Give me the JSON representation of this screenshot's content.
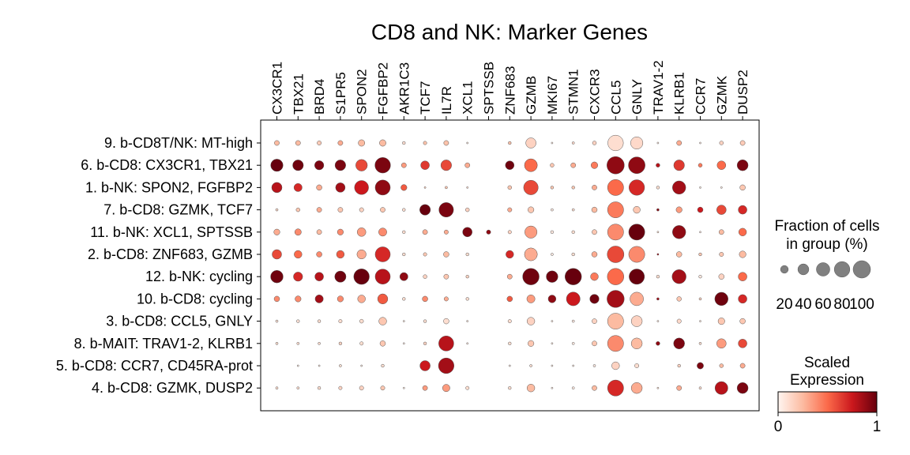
{
  "chart_data": {
    "type": "dotplot",
    "title": "CD8 and NK: Marker Genes",
    "genes": [
      "CX3CR1",
      "TBX21",
      "BRD4",
      "S1PR5",
      "SPON2",
      "FGFBP2",
      "AKR1C3",
      "TCF7",
      "IL7R",
      "XCL1",
      "SPTSSB",
      "ZNF683",
      "GZMB",
      "MKI67",
      "STMN1",
      "CXCR3",
      "CCL5",
      "GNLY",
      "TRAV1-2",
      "KLRB1",
      "CCR7",
      "GZMK",
      "DUSP2"
    ],
    "groups": [
      "9. b-CD8T/NK: MT-high",
      "6. b-CD8: CX3CR1, TBX21",
      "1. b-NK: SPON2, FGFBP2",
      "7. b-CD8: GZMK, TCF7",
      "11. b-NK: XCL1, SPTSSB",
      "2. b-CD8: ZNF683, GZMB",
      "12. b-NK: cycling",
      "10. b-CD8: cycling",
      "3. b-CD8: CCL5, GNLY",
      "8. b-MAIT: TRAV1-2, KLRB1",
      "5. b-CD8: CCR7, CD45RA-prot",
      "4. b-CD8: GZMK, DUSP2"
    ],
    "fraction_percent": [
      [
        8,
        8,
        6,
        8,
        14,
        14,
        3,
        4,
        8,
        1,
        0,
        3,
        35,
        1,
        2,
        5,
        80,
        50,
        1,
        8,
        1,
        5,
        8
      ],
      [
        50,
        38,
        28,
        38,
        45,
        80,
        8,
        25,
        38,
        8,
        0,
        25,
        55,
        5,
        8,
        15,
        100,
        92,
        5,
        38,
        5,
        25,
        40
      ],
      [
        35,
        22,
        10,
        30,
        65,
        75,
        12,
        1,
        2,
        1,
        0,
        5,
        70,
        3,
        3,
        8,
        85,
        80,
        3,
        58,
        1,
        1,
        10
      ],
      [
        2,
        5,
        8,
        8,
        6,
        8,
        3,
        38,
        70,
        5,
        0,
        6,
        12,
        2,
        2,
        10,
        85,
        16,
        2,
        12,
        10,
        30,
        25
      ],
      [
        12,
        14,
        8,
        12,
        25,
        22,
        3,
        8,
        6,
        30,
        6,
        4,
        50,
        3,
        3,
        8,
        85,
        85,
        1,
        58,
        1,
        8,
        20
      ],
      [
        30,
        20,
        10,
        20,
        28,
        75,
        3,
        4,
        10,
        3,
        0,
        20,
        55,
        2,
        3,
        10,
        92,
        85,
        1,
        10,
        3,
        6,
        15
      ],
      [
        52,
        28,
        25,
        42,
        80,
        75,
        22,
        5,
        8,
        3,
        0,
        8,
        90,
        45,
        90,
        20,
        90,
        78,
        3,
        65,
        3,
        10,
        25
      ],
      [
        10,
        12,
        22,
        12,
        20,
        34,
        3,
        10,
        6,
        3,
        0,
        10,
        22,
        20,
        62,
        28,
        98,
        60,
        2,
        7,
        2,
        58,
        25
      ],
      [
        2,
        3,
        3,
        4,
        5,
        20,
        1,
        3,
        10,
        1,
        0,
        4,
        20,
        1,
        2,
        8,
        85,
        40,
        1,
        6,
        1,
        15,
        10
      ],
      [
        2,
        2,
        2,
        3,
        4,
        10,
        1,
        3,
        75,
        1,
        0,
        3,
        12,
        1,
        2,
        8,
        85,
        40,
        5,
        40,
        2,
        30,
        25
      ],
      [
        0,
        1,
        1,
        2,
        1,
        3,
        0,
        35,
        80,
        0,
        0,
        1,
        2,
        1,
        1,
        2,
        20,
        6,
        0,
        3,
        14,
        5,
        8
      ],
      [
        2,
        2,
        3,
        4,
        6,
        6,
        1,
        8,
        18,
        4,
        0,
        3,
        20,
        1,
        2,
        8,
        85,
        40,
        1,
        8,
        2,
        55,
        40
      ]
    ],
    "scaled_expression": [
      [
        0.25,
        0.25,
        0.18,
        0.3,
        0.25,
        0.25,
        0.1,
        0.22,
        0.22,
        0.05,
        0.0,
        0.22,
        0.15,
        0.05,
        0.12,
        0.15,
        0.1,
        0.12,
        0.05,
        0.3,
        0.05,
        0.15,
        0.18
      ],
      [
        1.0,
        0.98,
        0.95,
        0.95,
        0.6,
        0.95,
        0.35,
        0.65,
        0.6,
        0.3,
        0.0,
        0.98,
        0.5,
        0.2,
        0.3,
        0.45,
        0.9,
        0.9,
        0.8,
        0.65,
        0.45,
        0.5,
        0.95
      ],
      [
        0.8,
        0.7,
        0.3,
        0.85,
        0.75,
        0.9,
        0.55,
        0.15,
        0.2,
        0.1,
        0.0,
        0.2,
        0.6,
        0.2,
        0.2,
        0.3,
        0.5,
        0.7,
        0.1,
        0.85,
        0.05,
        0.05,
        0.2
      ],
      [
        0.12,
        0.2,
        0.3,
        0.2,
        0.15,
        0.2,
        0.1,
        1.0,
        0.95,
        0.15,
        0.0,
        0.3,
        0.2,
        0.05,
        0.1,
        0.25,
        0.45,
        0.2,
        0.9,
        0.35,
        0.75,
        0.6,
        0.7
      ],
      [
        0.3,
        0.4,
        0.25,
        0.4,
        0.35,
        0.4,
        0.1,
        0.3,
        0.3,
        0.95,
        0.9,
        0.15,
        0.35,
        0.05,
        0.1,
        0.2,
        0.4,
        1.0,
        0.1,
        0.9,
        0.05,
        0.25,
        0.5
      ],
      [
        0.6,
        0.5,
        0.4,
        0.55,
        0.3,
        0.7,
        0.1,
        0.2,
        0.25,
        0.1,
        0.0,
        0.7,
        0.3,
        0.05,
        0.1,
        0.3,
        0.6,
        0.4,
        0.85,
        0.25,
        0.2,
        0.2,
        0.25
      ],
      [
        0.98,
        0.7,
        0.8,
        0.98,
        1.0,
        0.8,
        0.9,
        0.15,
        0.2,
        0.15,
        0.0,
        0.3,
        0.98,
        0.98,
        1.0,
        0.45,
        0.5,
        1.0,
        0.1,
        0.85,
        0.05,
        0.15,
        0.5
      ],
      [
        0.4,
        0.4,
        0.85,
        0.4,
        0.3,
        0.55,
        0.1,
        0.4,
        0.3,
        0.1,
        0.0,
        0.55,
        0.35,
        0.9,
        0.75,
        0.98,
        0.85,
        0.3,
        0.85,
        0.2,
        0.15,
        0.98,
        0.7
      ],
      [
        0.08,
        0.08,
        0.1,
        0.1,
        0.1,
        0.2,
        0.05,
        0.1,
        0.1,
        0.05,
        0.0,
        0.1,
        0.15,
        0.05,
        0.05,
        0.15,
        0.25,
        0.15,
        0.05,
        0.12,
        0.05,
        0.2,
        0.2
      ],
      [
        0.1,
        0.1,
        0.1,
        0.15,
        0.1,
        0.2,
        0.05,
        0.15,
        0.8,
        0.05,
        0.0,
        0.1,
        0.2,
        0.05,
        0.05,
        0.2,
        0.4,
        0.25,
        0.9,
        0.95,
        0.1,
        0.35,
        0.6
      ],
      [
        0.05,
        0.05,
        0.05,
        0.1,
        0.05,
        0.1,
        0.0,
        0.75,
        0.85,
        0.0,
        0.0,
        0.05,
        0.1,
        0.05,
        0.05,
        0.05,
        0.15,
        0.1,
        0.05,
        0.15,
        0.95,
        0.25,
        0.3
      ],
      [
        0.1,
        0.1,
        0.1,
        0.15,
        0.15,
        0.2,
        0.05,
        0.35,
        0.35,
        0.1,
        0.0,
        0.1,
        0.25,
        0.05,
        0.05,
        0.25,
        0.7,
        0.3,
        0.1,
        0.3,
        0.1,
        0.8,
        0.95
      ]
    ],
    "size_legend": {
      "title_line1": "Fraction of cells",
      "title_line2": "in group (%)",
      "values": [
        20,
        40,
        60,
        80,
        100
      ],
      "labels": [
        "20",
        "40",
        "60",
        "80",
        "100"
      ]
    },
    "color_legend": {
      "title_line1": "Scaled",
      "title_line2": "Expression",
      "min_label": "0",
      "max_label": "1",
      "colormap": "Reds",
      "colors": [
        "#fff5f0",
        "#fcbba1",
        "#fb6a4a",
        "#cb181d",
        "#67000d"
      ]
    }
  }
}
